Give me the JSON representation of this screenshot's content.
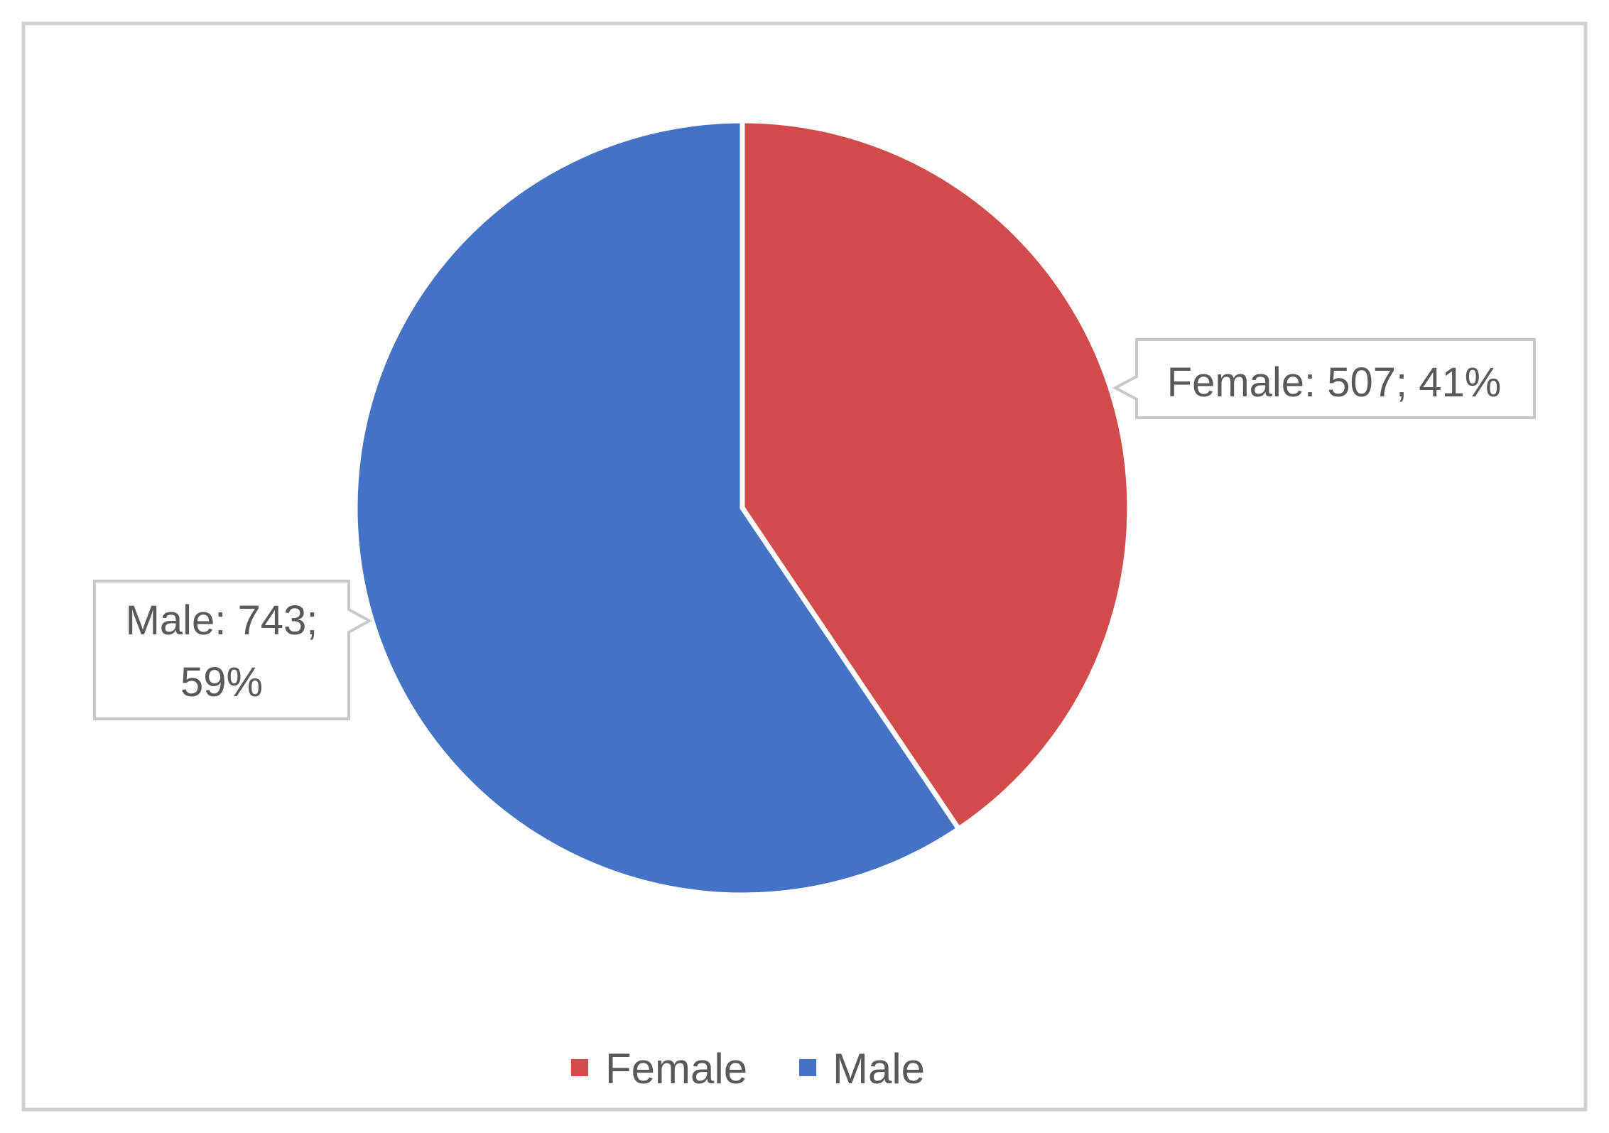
{
  "chart_data": {
    "type": "pie",
    "title": "",
    "slices": [
      {
        "label": "Female",
        "value": 507,
        "percent": 41,
        "color": "#D24B4B",
        "data_label_lines": [
          "Female: 507; 41%"
        ]
      },
      {
        "label": "Male",
        "value": 743,
        "percent": 59,
        "color": "#4472C4",
        "data_label_lines": [
          "Male: 743;",
          "59%"
        ]
      }
    ],
    "legend": {
      "placement": "bottom",
      "entries": [
        {
          "label": "Female",
          "color": "#D24B4B"
        },
        {
          "label": "Male",
          "color": "#4472C4"
        }
      ]
    }
  }
}
